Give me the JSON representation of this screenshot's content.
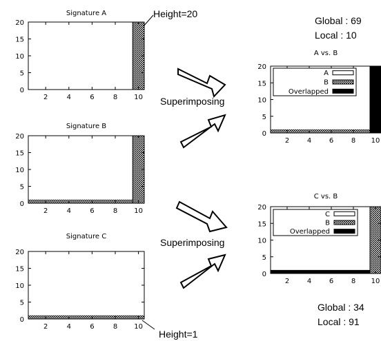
{
  "charts": [
    {
      "id": "sig-a",
      "title": "Signature A",
      "low_band": 0,
      "spike_from": 9.5,
      "spike_value": 20,
      "spike_fill": "dots"
    },
    {
      "id": "sig-b",
      "title": "Signature B",
      "low_band": 1,
      "spike_from": 9.5,
      "spike_value": 20,
      "spike_fill": "dots"
    },
    {
      "id": "sig-c",
      "title": "Signature C",
      "low_band": 1,
      "spike_from": null,
      "spike_value": null,
      "spike_fill": null
    },
    {
      "id": "a-vs-b",
      "title": "A vs. B",
      "low_band": 1,
      "spike_from": 9.5,
      "spike_value": 20,
      "spike_fill": "black",
      "legend": [
        {
          "label": "A",
          "swatch": "white"
        },
        {
          "label": "B",
          "swatch": "dots"
        },
        {
          "label": "Overlapped",
          "swatch": "black"
        }
      ]
    },
    {
      "id": "c-vs-b",
      "title": "C vs. B",
      "low_band": 1,
      "spike_from": 9.5,
      "spike_value": 20,
      "spike_fill": "dots",
      "low_fill": "black",
      "legend": [
        {
          "label": "C",
          "swatch": "white"
        },
        {
          "label": "B",
          "swatch": "dots"
        },
        {
          "label": "Overlapped",
          "swatch": "black"
        }
      ]
    }
  ],
  "axis": {
    "y_ticks": [
      "0",
      "5",
      "10",
      "15",
      "20"
    ],
    "x_ticks": [
      "2",
      "4",
      "6",
      "8",
      "10"
    ],
    "ylim": [
      0,
      20
    ],
    "xlim": [
      0.5,
      10.5
    ]
  },
  "annotations": {
    "height_20": "Height=20",
    "height_1": "Height=1",
    "superimposing_top": "Superimposing",
    "superimposing_bottom": "Superimposing"
  },
  "scores": {
    "ab_global": "Global : 69",
    "ab_local": "Local : 10",
    "cb_global": "Global : 34",
    "cb_local": "Local : 91"
  },
  "colors": {
    "ink": "#000000",
    "paper": "#ffffff",
    "arrow_fill": "#ffffff"
  }
}
